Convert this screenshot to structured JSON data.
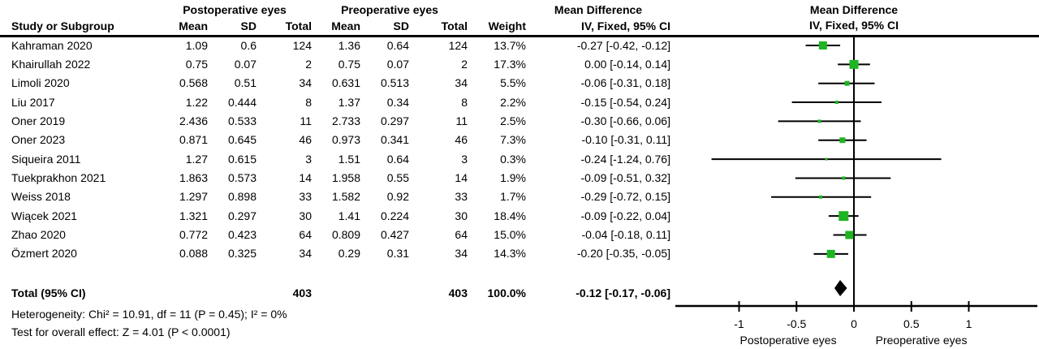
{
  "columns": {
    "group_post": "Postoperative eyes",
    "group_pre": "Preoperative eyes",
    "mean_diff": "Mean Difference",
    "study": "Study or Subgroup",
    "mean": "Mean",
    "sd": "SD",
    "total": "Total",
    "weight": "Weight",
    "ci_method": "IV, Fixed, 95% CI"
  },
  "plot_header": {
    "title": "Mean Difference",
    "subtitle": "IV, Fixed, 95% CI"
  },
  "totals": {
    "label": "Total (95% CI)",
    "post_total": "403",
    "pre_total": "403",
    "weight": "100.0%",
    "ci_text": "-0.12 [-0.17, -0.06]"
  },
  "footnotes": {
    "heterogeneity": "Heterogeneity: Chi² = 10.91, df = 11 (P = 0.45); I² = 0%",
    "overall_effect": "Test for overall effect: Z = 4.01 (P < 0.0001)"
  },
  "chart_data": {
    "type": "forest",
    "title": "Mean Difference IV, Fixed, 95% CI",
    "effect_measure": "Mean Difference",
    "model": "IV, Fixed, 95% CI",
    "x_ticks": [
      -1,
      -0.5,
      0,
      0.5,
      1
    ],
    "x_tick_labels": [
      "-1",
      "-0.5",
      "0",
      "0.5",
      "1"
    ],
    "xlim": [
      -1.55,
      1.6
    ],
    "x_label_left": "Postoperative eyes",
    "x_label_right": "Preoperative eyes",
    "marker_color": "#1eb422",
    "line_color": "#000000",
    "studies": [
      {
        "name": "Kahraman 2020",
        "post_mean": "1.09",
        "post_sd": "0.6",
        "post_total": "124",
        "pre_mean": "1.36",
        "pre_sd": "0.64",
        "pre_total": "124",
        "weight": "13.7%",
        "ci": "-0.27 [-0.42, -0.12]",
        "md": -0.27,
        "lo": -0.42,
        "hi": -0.12,
        "w": 13.7
      },
      {
        "name": "Khairullah 2022",
        "post_mean": "0.75",
        "post_sd": "0.07",
        "post_total": "2",
        "pre_mean": "0.75",
        "pre_sd": "0.07",
        "pre_total": "2",
        "weight": "17.3%",
        "ci": "0.00 [-0.14, 0.14]",
        "md": 0.0,
        "lo": -0.14,
        "hi": 0.14,
        "w": 17.3
      },
      {
        "name": "Limoli 2020",
        "post_mean": "0.568",
        "post_sd": "0.51",
        "post_total": "34",
        "pre_mean": "0.631",
        "pre_sd": "0.513",
        "pre_total": "34",
        "weight": "5.5%",
        "ci": "-0.06 [-0.31, 0.18]",
        "md": -0.06,
        "lo": -0.31,
        "hi": 0.18,
        "w": 5.5
      },
      {
        "name": "Liu 2017",
        "post_mean": "1.22",
        "post_sd": "0.444",
        "post_total": "8",
        "pre_mean": "1.37",
        "pre_sd": "0.34",
        "pre_total": "8",
        "weight": "2.2%",
        "ci": "-0.15 [-0.54, 0.24]",
        "md": -0.15,
        "lo": -0.54,
        "hi": 0.24,
        "w": 2.2
      },
      {
        "name": "Oner 2019",
        "post_mean": "2.436",
        "post_sd": "0.533",
        "post_total": "11",
        "pre_mean": "2.733",
        "pre_sd": "0.297",
        "pre_total": "11",
        "weight": "2.5%",
        "ci": "-0.30 [-0.66, 0.06]",
        "md": -0.3,
        "lo": -0.66,
        "hi": 0.06,
        "w": 2.5
      },
      {
        "name": "Oner 2023",
        "post_mean": "0.871",
        "post_sd": "0.645",
        "post_total": "46",
        "pre_mean": "0.973",
        "pre_sd": "0.341",
        "pre_total": "46",
        "weight": "7.3%",
        "ci": "-0.10 [-0.31, 0.11]",
        "md": -0.1,
        "lo": -0.31,
        "hi": 0.11,
        "w": 7.3
      },
      {
        "name": "Siqueira 2011",
        "post_mean": "1.27",
        "post_sd": "0.615",
        "post_total": "3",
        "pre_mean": "1.51",
        "pre_sd": "0.64",
        "pre_total": "3",
        "weight": "0.3%",
        "ci": "-0.24 [-1.24, 0.76]",
        "md": -0.24,
        "lo": -1.24,
        "hi": 0.76,
        "w": 0.3
      },
      {
        "name": "Tuekprakhon 2021",
        "post_mean": "1.863",
        "post_sd": "0.573",
        "post_total": "14",
        "pre_mean": "1.958",
        "pre_sd": "0.55",
        "pre_total": "14",
        "weight": "1.9%",
        "ci": "-0.09 [-0.51, 0.32]",
        "md": -0.09,
        "lo": -0.51,
        "hi": 0.32,
        "w": 1.9
      },
      {
        "name": "Weiss 2018",
        "post_mean": "1.297",
        "post_sd": "0.898",
        "post_total": "33",
        "pre_mean": "1.582",
        "pre_sd": "0.92",
        "pre_total": "33",
        "weight": "1.7%",
        "ci": "-0.29 [-0.72, 0.15]",
        "md": -0.29,
        "lo": -0.72,
        "hi": 0.15,
        "w": 1.7
      },
      {
        "name": "Wiącek 2021",
        "post_mean": "1.321",
        "post_sd": "0.297",
        "post_total": "30",
        "pre_mean": "1.41",
        "pre_sd": "0.224",
        "pre_total": "30",
        "weight": "18.4%",
        "ci": "-0.09 [-0.22, 0.04]",
        "md": -0.09,
        "lo": -0.22,
        "hi": 0.04,
        "w": 18.4
      },
      {
        "name": "Zhao 2020",
        "post_mean": "0.772",
        "post_sd": "0.423",
        "post_total": "64",
        "pre_mean": "0.809",
        "pre_sd": "0.427",
        "pre_total": "64",
        "weight": "15.0%",
        "ci": "-0.04 [-0.18, 0.11]",
        "md": -0.04,
        "lo": -0.18,
        "hi": 0.11,
        "w": 15.0
      },
      {
        "name": "Özmert 2020",
        "post_mean": "0.088",
        "post_sd": "0.325",
        "post_total": "34",
        "pre_mean": "0.29",
        "pre_sd": "0.31",
        "pre_total": "34",
        "weight": "14.3%",
        "ci": "-0.20 [-0.35, -0.05]",
        "md": -0.2,
        "lo": -0.35,
        "hi": -0.05,
        "w": 14.3
      }
    ],
    "overall": {
      "label": "Total (95% CI)",
      "post_total": 403,
      "pre_total": 403,
      "weight": "100.0%",
      "ci": "-0.12 [-0.17, -0.06]",
      "md": -0.12,
      "lo": -0.17,
      "hi": -0.06
    }
  }
}
